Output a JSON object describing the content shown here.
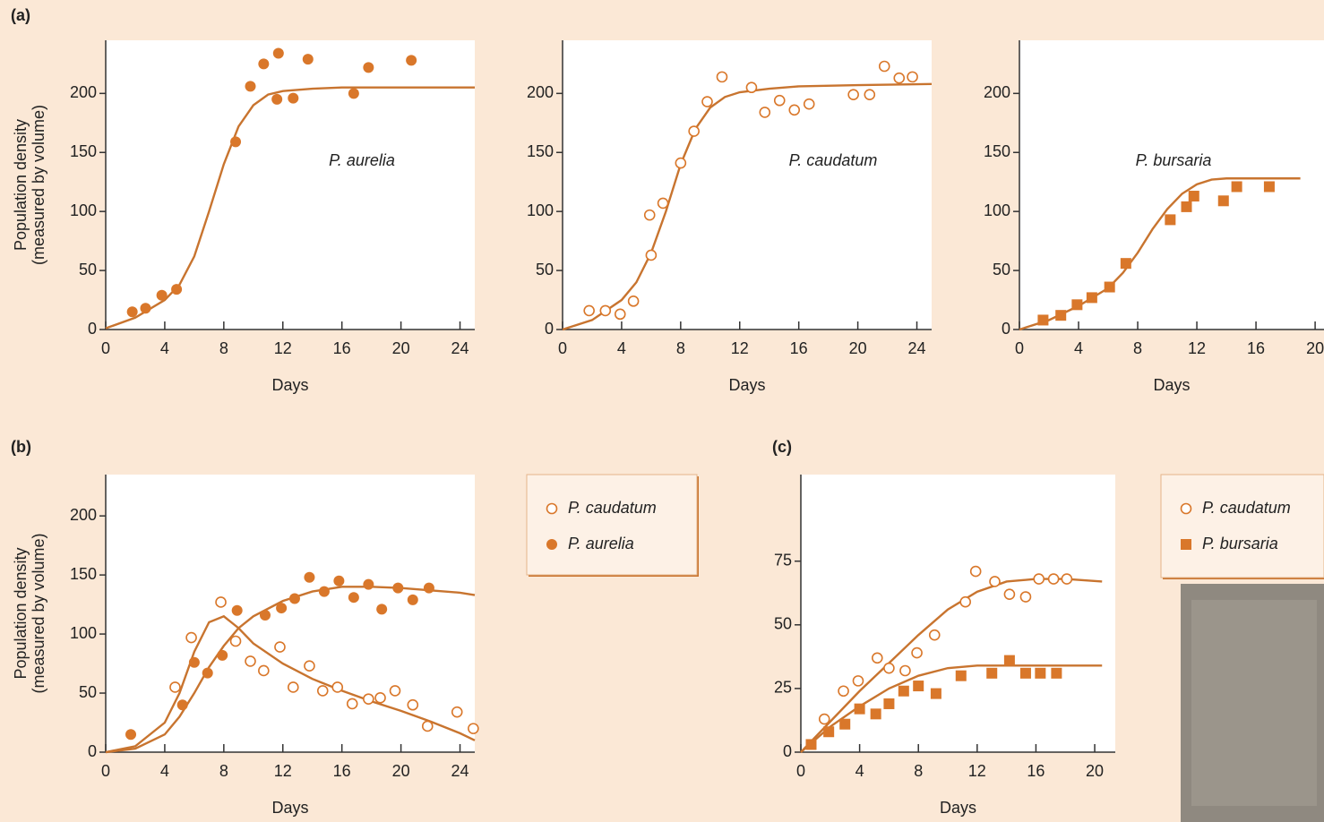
{
  "chart_data": [
    {
      "type": "scatter",
      "panel_label": "(a)",
      "ylabel": [
        "Population density",
        "(measured by volume)"
      ],
      "xlabel": "Days",
      "xlim": [
        0,
        25
      ],
      "ylim": [
        0,
        245
      ],
      "xticks": [
        0,
        4,
        8,
        12,
        16,
        20,
        24
      ],
      "yticks": [
        0,
        50,
        100,
        150,
        200
      ],
      "legend": false,
      "series": [
        {
          "name": "P. aurelia",
          "color": "#d9772a",
          "marker": "filled",
          "x": [
            1.8,
            2.7,
            3.8,
            4.8,
            8.8,
            9.8,
            10.7,
            11.7,
            11.6,
            12.7,
            13.7,
            16.8,
            17.8,
            20.7
          ],
          "values": [
            15,
            18,
            29,
            34,
            159,
            206,
            225,
            234,
            195,
            196,
            229,
            200,
            222,
            228
          ],
          "curve_x": [
            0,
            2,
            4,
            5,
            6,
            7,
            8,
            9,
            10,
            11,
            12,
            14,
            16,
            20,
            25
          ],
          "curve": [
            1,
            10,
            25,
            38,
            62,
            100,
            140,
            172,
            190,
            199,
            202,
            204,
            205,
            205,
            205
          ]
        }
      ]
    },
    {
      "type": "scatter",
      "xlabel": "Days",
      "xlim": [
        0,
        25
      ],
      "ylim": [
        0,
        245
      ],
      "xticks": [
        0,
        4,
        8,
        12,
        16,
        20,
        24
      ],
      "yticks": [
        0,
        50,
        100,
        150,
        200
      ],
      "legend": false,
      "series": [
        {
          "name": "P. caudatum",
          "color": "#d9772a",
          "marker": "open",
          "x": [
            1.8,
            2.9,
            3.9,
            4.8,
            5.9,
            6,
            6.8,
            8,
            8.9,
            9.8,
            10.8,
            12.8,
            13.7,
            14.7,
            15.7,
            16.7,
            19.7,
            20.8,
            21.8,
            22.8,
            23.7
          ],
          "values": [
            16,
            16,
            13,
            24,
            97,
            63,
            107,
            141,
            168,
            193,
            214,
            205,
            184,
            194,
            186,
            191,
            199,
            199,
            223,
            213,
            214
          ],
          "curve_x": [
            0,
            2,
            4,
            5,
            6,
            7,
            8,
            9,
            10,
            11,
            12,
            14,
            16,
            20,
            25
          ],
          "curve": [
            0,
            8,
            25,
            40,
            65,
            100,
            140,
            170,
            188,
            197,
            201,
            204,
            206,
            207,
            208
          ]
        }
      ]
    },
    {
      "type": "scatter",
      "xlabel": "Days",
      "xlim": [
        0,
        20.6
      ],
      "ylim": [
        0,
        245
      ],
      "xticks": [
        0,
        4,
        8,
        12,
        16,
        20
      ],
      "yticks": [
        0,
        50,
        100,
        150,
        200
      ],
      "legend": false,
      "series": [
        {
          "name": "P. bursaria",
          "color": "#d9772a",
          "marker": "square",
          "x": [
            1.6,
            2.8,
            3.9,
            4.9,
            6.1,
            7.2,
            10.2,
            11.3,
            11.8,
            13.8,
            14.7,
            16.9
          ],
          "values": [
            8,
            12,
            21,
            27,
            36,
            56,
            93,
            104,
            113,
            109,
            121,
            121
          ],
          "curve_x": [
            0,
            2,
            4,
            6,
            7,
            8,
            9,
            10,
            11,
            12,
            13,
            14,
            16,
            19
          ],
          "curve": [
            0,
            8,
            20,
            35,
            48,
            65,
            85,
            102,
            115,
            123,
            127,
            128,
            128,
            128
          ]
        }
      ]
    },
    {
      "type": "scatter",
      "panel_label": "(b)",
      "ylabel": [
        "Population density",
        "(measured by volume)"
      ],
      "xlabel": "Days",
      "xlim": [
        0,
        25
      ],
      "ylim": [
        0,
        235
      ],
      "xticks": [
        0,
        4,
        8,
        12,
        16,
        20,
        24
      ],
      "yticks": [
        0,
        50,
        100,
        150,
        200
      ],
      "legend": true,
      "series": [
        {
          "name": "P. caudatum",
          "color": "#d9772a",
          "marker": "open",
          "x": [
            4.7,
            5.8,
            7.8,
            8.8,
            9.8,
            10.7,
            11.8,
            12.7,
            13.8,
            14.7,
            15.7,
            16.7,
            17.8,
            18.6,
            19.6,
            20.8,
            21.8,
            23.8,
            24.9
          ],
          "values": [
            55,
            97,
            127,
            94,
            77,
            69,
            89,
            55,
            73,
            52,
            55,
            41,
            45,
            46,
            52,
            40,
            22,
            34,
            20
          ],
          "curve_x": [
            0,
            2,
            4,
            5,
            6,
            7,
            8,
            9,
            10,
            12,
            14,
            16,
            18,
            20,
            22,
            24,
            25
          ],
          "curve": [
            0,
            5,
            25,
            50,
            85,
            110,
            115,
            105,
            92,
            75,
            62,
            52,
            43,
            35,
            26,
            16,
            10
          ]
        },
        {
          "name": "P. aurelia",
          "color": "#d9772a",
          "marker": "filled",
          "x": [
            1.7,
            5.2,
            6,
            6.9,
            7.9,
            8.9,
            10.8,
            11.9,
            12.8,
            13.8,
            14.8,
            15.8,
            16.8,
            17.8,
            18.7,
            19.8,
            20.8,
            21.9
          ],
          "values": [
            15,
            40,
            76,
            67,
            82,
            120,
            116,
            122,
            130,
            148,
            136,
            145,
            131,
            142,
            121,
            139,
            129,
            139
          ],
          "curve_x": [
            0,
            2,
            4,
            5,
            6,
            7,
            8,
            9,
            10,
            12,
            14,
            16,
            18,
            20,
            22,
            24,
            25
          ],
          "curve": [
            0,
            3,
            15,
            30,
            50,
            72,
            90,
            105,
            115,
            128,
            136,
            140,
            140,
            139,
            137,
            135,
            133
          ]
        }
      ]
    },
    {
      "type": "scatter",
      "panel_label": "(c)",
      "xlabel": "Days",
      "xlim": [
        0,
        21.4
      ],
      "ylim": [
        0,
        109
      ],
      "xticks": [
        0,
        4,
        8,
        12,
        16,
        20
      ],
      "yticks": [
        0,
        25,
        50,
        75
      ],
      "legend": true,
      "series": [
        {
          "name": "P. caudatum",
          "color": "#d9772a",
          "marker": "open",
          "x": [
            1.6,
            2.9,
            3.9,
            5.2,
            6,
            7.1,
            7.9,
            9.1,
            11.2,
            11.9,
            13.2,
            14.2,
            15.3,
            16.2,
            17.2,
            18.1
          ],
          "values": [
            13,
            24,
            28,
            37,
            33,
            32,
            39,
            46,
            59,
            71,
            67,
            62,
            61,
            68,
            68,
            68
          ],
          "curve_x": [
            0,
            2,
            4,
            6,
            8,
            10,
            12,
            14,
            16,
            18,
            20.5
          ],
          "curve": [
            0,
            12,
            24,
            35,
            46,
            56,
            63,
            67,
            68,
            68,
            67
          ]
        },
        {
          "name": "P. bursaria",
          "color": "#d9772a",
          "marker": "square",
          "x": [
            0.7,
            1.9,
            3,
            4,
            5.1,
            6,
            7,
            8,
            9.2,
            10.9,
            13,
            14.2,
            15.3,
            16.3,
            17.4
          ],
          "values": [
            3,
            8,
            11,
            17,
            15,
            19,
            24,
            26,
            23,
            30,
            31,
            36,
            31,
            31,
            31
          ],
          "curve_x": [
            0,
            2,
            4,
            6,
            8,
            10,
            12,
            14,
            16,
            18,
            20.5
          ],
          "curve": [
            0,
            10,
            18,
            25,
            30,
            33,
            34,
            34,
            34,
            34,
            34
          ]
        }
      ]
    }
  ]
}
